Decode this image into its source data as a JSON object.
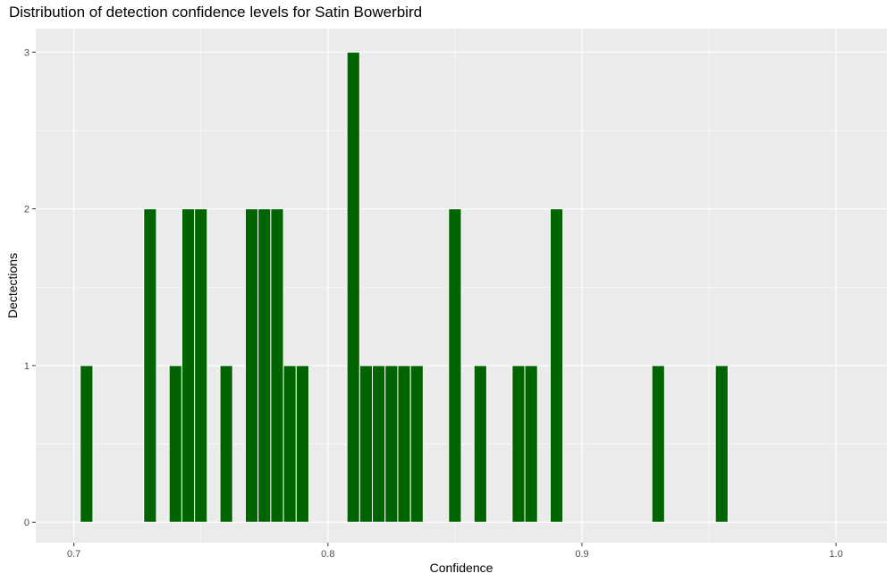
{
  "chart_data": {
    "type": "bar",
    "title": "Distribution of detection confidence levels for Satin Bowerbird",
    "xlabel": "Confidence",
    "ylabel": "Dectections",
    "xlim": [
      0.685,
      1.02
    ],
    "ylim": [
      -0.13,
      3.15
    ],
    "x_ticks": [
      0.7,
      0.8,
      0.9,
      1.0
    ],
    "x_tick_labels": [
      "0.7",
      "0.8",
      "0.9",
      "1.0"
    ],
    "y_ticks": [
      0,
      1,
      2,
      3
    ],
    "y_tick_labels": [
      "0",
      "1",
      "2",
      "3"
    ],
    "bin_width": 0.005,
    "bar_color": "#006400",
    "panel_background": "#ebebeb",
    "grid": true,
    "bins": [
      {
        "x": 0.705,
        "count": 1
      },
      {
        "x": 0.73,
        "count": 2
      },
      {
        "x": 0.74,
        "count": 1
      },
      {
        "x": 0.745,
        "count": 2
      },
      {
        "x": 0.75,
        "count": 2
      },
      {
        "x": 0.76,
        "count": 1
      },
      {
        "x": 0.77,
        "count": 2
      },
      {
        "x": 0.775,
        "count": 2
      },
      {
        "x": 0.78,
        "count": 2
      },
      {
        "x": 0.785,
        "count": 1
      },
      {
        "x": 0.79,
        "count": 1
      },
      {
        "x": 0.81,
        "count": 3
      },
      {
        "x": 0.815,
        "count": 1
      },
      {
        "x": 0.82,
        "count": 1
      },
      {
        "x": 0.825,
        "count": 1
      },
      {
        "x": 0.83,
        "count": 1
      },
      {
        "x": 0.835,
        "count": 1
      },
      {
        "x": 0.85,
        "count": 2
      },
      {
        "x": 0.86,
        "count": 1
      },
      {
        "x": 0.875,
        "count": 1
      },
      {
        "x": 0.88,
        "count": 1
      },
      {
        "x": 0.89,
        "count": 2
      },
      {
        "x": 0.93,
        "count": 1
      },
      {
        "x": 0.955,
        "count": 1
      }
    ]
  }
}
